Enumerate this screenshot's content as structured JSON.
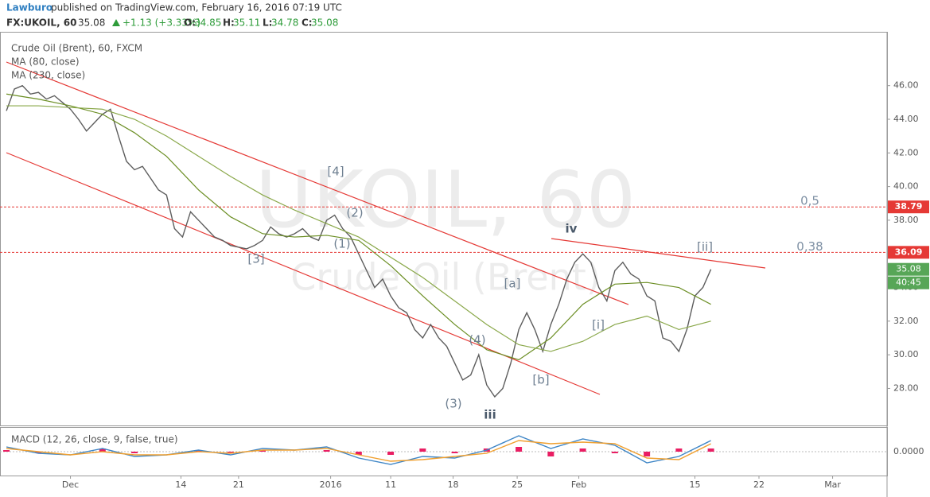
{
  "header": {
    "author": "Lawburo",
    "published": "published on TradingView.com, February 16, 2016 07:19 UTC",
    "symbol": "FX:UKOIL, 60",
    "price": "35.08",
    "change": "+1.13 (+3.33%)",
    "ohlc": [
      {
        "label": "O:",
        "value": "34.85"
      },
      {
        "label": "H:",
        "value": "35.11"
      },
      {
        "label": "L:",
        "value": "34.78"
      },
      {
        "label": "C:",
        "value": "35.08"
      }
    ]
  },
  "chart_data": [
    {
      "type": "line",
      "watermark": "UKOIL, 60",
      "watermark_subtitle": "Crude Oil (Brent)",
      "xlim": [
        -0.8,
        110.0
      ],
      "ylim": [
        25.8,
        49.2
      ],
      "xticks": [
        {
          "value": 8,
          "label": "Dec"
        },
        {
          "value": 21.8,
          "label": "14"
        },
        {
          "value": 29.0,
          "label": "21"
        },
        {
          "value": 40.5,
          "label": "2016"
        },
        {
          "value": 48,
          "label": "11"
        },
        {
          "value": 55.8,
          "label": "18"
        },
        {
          "value": 63.8,
          "label": "25"
        },
        {
          "value": 71.5,
          "label": "Feb"
        },
        {
          "value": 86,
          "label": "15"
        },
        {
          "value": 94,
          "label": "22"
        },
        {
          "value": 103.2,
          "label": "Mar"
        }
      ],
      "yticks": [
        {
          "value": 28,
          "label": "28.00"
        },
        {
          "value": 30,
          "label": "30.00"
        },
        {
          "value": 32,
          "label": "32.00"
        },
        {
          "value": 34,
          "label": "34.00"
        },
        {
          "value": 36,
          "label": "36.00"
        },
        {
          "value": 38,
          "label": "38.00"
        },
        {
          "value": 40,
          "label": "40.00"
        },
        {
          "value": 42,
          "label": "42.00"
        },
        {
          "value": 44,
          "label": "44.00"
        },
        {
          "value": 46,
          "label": "46.00"
        }
      ],
      "x": [
        0,
        1,
        2,
        3,
        4,
        5,
        6,
        7,
        8,
        9,
        10,
        11,
        12,
        13,
        14,
        15,
        16,
        17,
        18,
        19,
        20,
        21,
        22,
        23,
        24,
        25,
        26,
        27,
        28,
        29,
        30,
        31,
        32,
        33,
        34,
        35,
        36,
        37,
        38,
        39,
        40,
        41,
        42,
        43,
        44,
        45,
        46,
        47,
        48,
        49,
        50,
        51,
        52,
        53,
        54,
        55,
        56,
        57,
        58,
        59,
        60,
        61,
        62,
        63,
        64,
        65,
        66,
        67,
        68,
        69,
        70,
        71,
        72,
        73,
        74,
        75,
        76,
        77,
        78,
        79,
        80,
        81,
        82,
        83,
        84,
        85,
        86,
        87,
        88
      ],
      "series": [
        {
          "name": "Crude Oil (Brent), 60, FXCM",
          "color": "#5d5d5d",
          "values": [
            44.5,
            45.8,
            46.0,
            45.5,
            45.6,
            45.2,
            45.4,
            45.0,
            44.6,
            44.0,
            43.3,
            43.8,
            44.3,
            44.6,
            43.0,
            41.5,
            41.0,
            41.2,
            40.5,
            39.8,
            39.5,
            37.5,
            37.0,
            38.5,
            38.0,
            37.5,
            37.0,
            36.8,
            36.5,
            36.4,
            36.3,
            36.5,
            36.8,
            37.6,
            37.2,
            37.0,
            37.2,
            37.5,
            37.0,
            36.8,
            38.0,
            38.3,
            37.5,
            37.0,
            36.0,
            35.0,
            34.0,
            34.5,
            33.5,
            32.8,
            32.5,
            31.5,
            31.0,
            31.8,
            31.0,
            30.5,
            29.5,
            28.5,
            28.8,
            30.0,
            28.2,
            27.5,
            28.0,
            29.5,
            31.5,
            32.5,
            31.5,
            30.2,
            31.8,
            33.0,
            34.5,
            35.5,
            36.0,
            35.5,
            34.0,
            33.2,
            35.0,
            35.5,
            34.8,
            34.5,
            33.5,
            33.2,
            31.0,
            30.8,
            30.2,
            31.5,
            33.5,
            34.0,
            35.08
          ]
        },
        {
          "name": "MA (80, close)",
          "color": "#6b8e23",
          "x": [
            0,
            4,
            8,
            12,
            16,
            20,
            24,
            28,
            32,
            36,
            40,
            44,
            48,
            52,
            56,
            60,
            64,
            68,
            72,
            76,
            80,
            84,
            88
          ],
          "values": [
            45.5,
            45.2,
            44.8,
            44.3,
            43.2,
            41.8,
            39.8,
            38.2,
            37.2,
            37.0,
            37.1,
            36.8,
            35.3,
            33.5,
            31.8,
            30.3,
            29.7,
            31.0,
            33.0,
            34.2,
            34.3,
            34.0,
            33.0
          ]
        },
        {
          "name": "MA (230, close)",
          "color": "#8aa84a",
          "x": [
            0,
            4,
            8,
            12,
            16,
            20,
            24,
            28,
            32,
            36,
            40,
            44,
            48,
            52,
            56,
            60,
            64,
            68,
            72,
            76,
            80,
            84,
            88
          ],
          "values": [
            44.8,
            44.8,
            44.7,
            44.6,
            44.0,
            43.0,
            41.8,
            40.6,
            39.5,
            38.6,
            37.8,
            37.0,
            35.8,
            34.6,
            33.2,
            31.8,
            30.6,
            30.2,
            30.8,
            31.8,
            32.3,
            31.5,
            32.0
          ]
        }
      ],
      "levels": [
        {
          "value": 38.79,
          "color": "#e53935"
        },
        {
          "value": 36.09,
          "color": "#e53935"
        }
      ],
      "level_annotations": [
        "0,5",
        "0,38"
      ],
      "last_price": 35.08,
      "countdown": "40:45",
      "annotations": [
        "[4]",
        "(2)",
        "(1)",
        "[3]",
        "iv",
        "[a]",
        "(4)",
        "(3)",
        "iii",
        "[b]",
        "[i]",
        "[ii]"
      ]
    },
    {
      "type": "macd",
      "title": "MACD (12, 26, close, 9, false, true)",
      "ylim": [
        -1.4,
        1.4
      ],
      "yticks": [
        {
          "value": 0,
          "label": "0.0000"
        }
      ],
      "x": [
        0,
        4,
        8,
        12,
        16,
        20,
        24,
        28,
        32,
        36,
        40,
        44,
        48,
        52,
        56,
        60,
        64,
        68,
        72,
        76,
        80,
        84,
        88
      ],
      "series": [
        {
          "color": "#3d85c6",
          "values": [
            0.3,
            -0.1,
            -0.2,
            0.2,
            -0.3,
            -0.2,
            0.1,
            -0.2,
            0.2,
            0.1,
            0.3,
            -0.4,
            -0.8,
            -0.3,
            -0.4,
            0.1,
            1.0,
            0.2,
            0.8,
            0.4,
            -0.7,
            -0.3,
            0.7
          ]
        },
        {
          "color": "#f0a030",
          "values": [
            0.2,
            0.0,
            -0.2,
            0.0,
            -0.2,
            -0.2,
            0.0,
            -0.1,
            0.1,
            0.1,
            0.2,
            -0.2,
            -0.6,
            -0.5,
            -0.3,
            -0.1,
            0.7,
            0.5,
            0.6,
            0.5,
            -0.4,
            -0.5,
            0.5
          ]
        },
        {
          "color": "#e91e63",
          "values": [
            0.1,
            -0.1,
            0,
            0.2,
            -0.1,
            0,
            0.1,
            -0.1,
            0.1,
            0,
            0.1,
            -0.2,
            -0.2,
            0.2,
            -0.1,
            0.2,
            0.3,
            -0.3,
            0.2,
            -0.1,
            -0.3,
            0.2,
            0.2
          ]
        }
      ]
    }
  ]
}
